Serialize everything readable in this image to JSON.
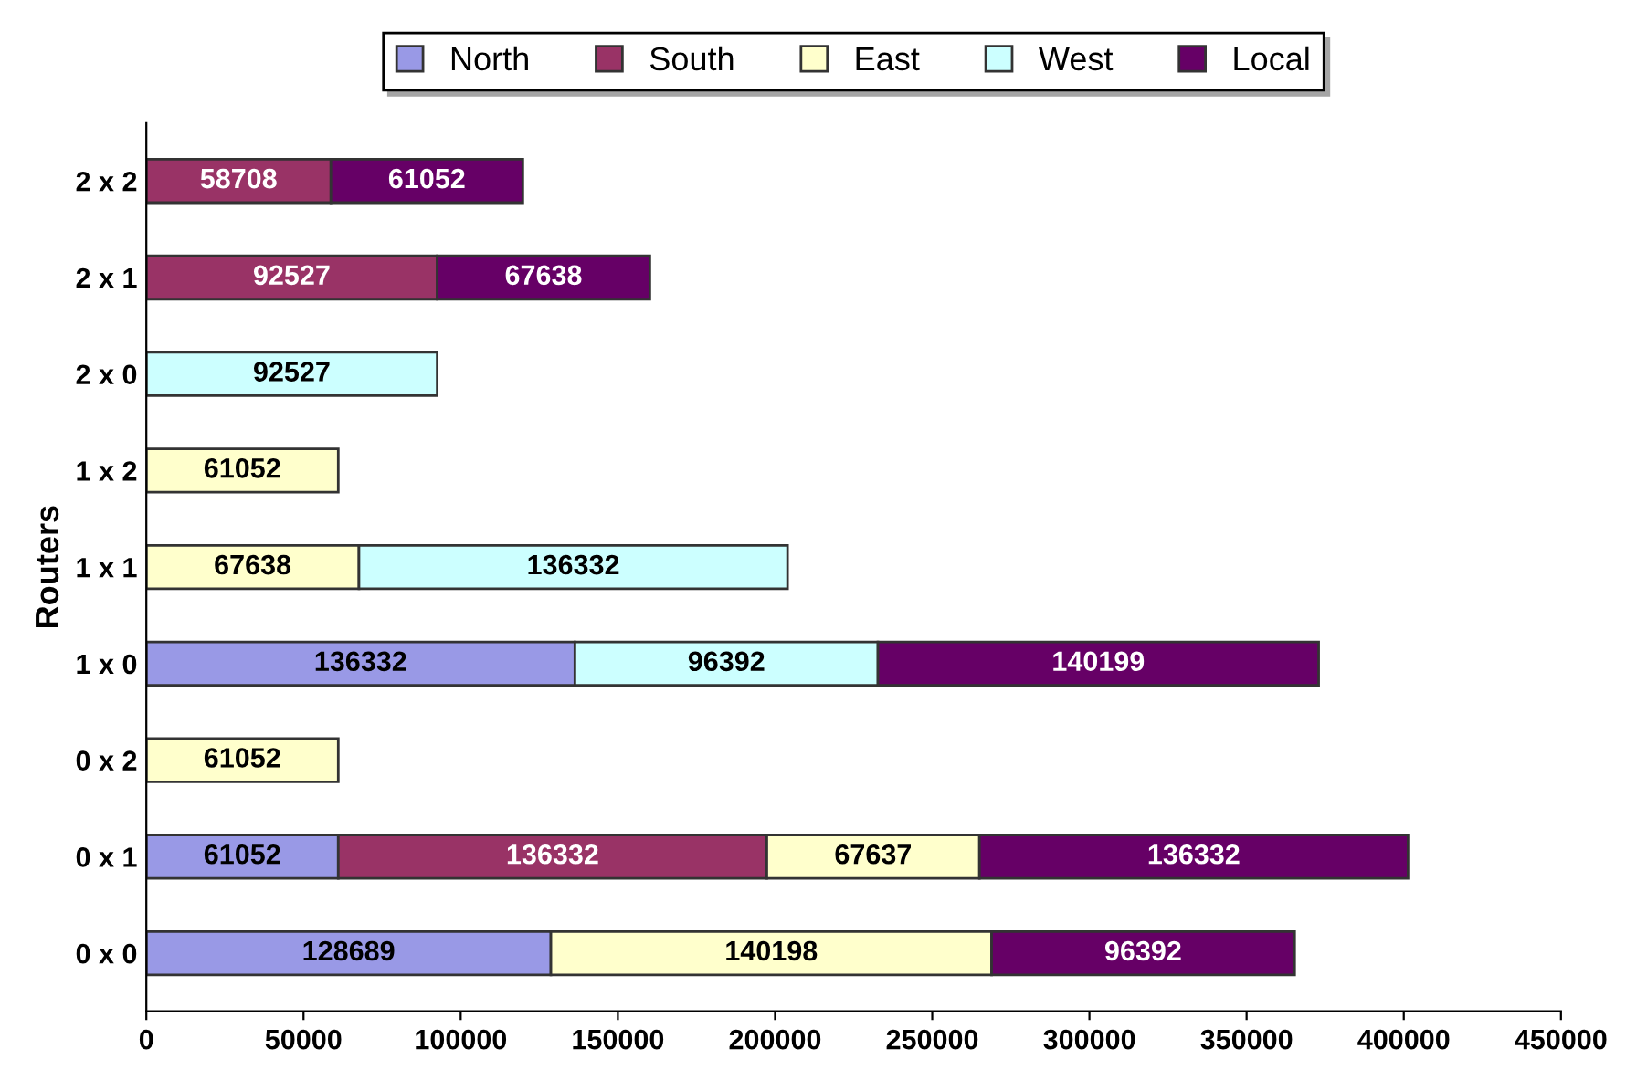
{
  "chart_data": {
    "type": "bar",
    "orientation": "horizontal",
    "stacked": true,
    "ylabel": "Routers",
    "categories": [
      "2 x 2",
      "2 x 1",
      "2 x 0",
      "1 x 2",
      "1 x 1",
      "1 x 0",
      "0 x 2",
      "0 x 1",
      "0 x 0"
    ],
    "series": [
      {
        "name": "North",
        "color": "#9999e6",
        "values": [
          null,
          null,
          null,
          null,
          null,
          136332,
          null,
          61052,
          128689
        ]
      },
      {
        "name": "South",
        "color": "#993366",
        "values": [
          58708,
          92527,
          null,
          null,
          null,
          null,
          null,
          136332,
          null
        ]
      },
      {
        "name": "East",
        "color": "#ffffcc",
        "values": [
          null,
          null,
          null,
          61052,
          67638,
          null,
          61052,
          67637,
          140198
        ]
      },
      {
        "name": "West",
        "color": "#ccffff",
        "values": [
          null,
          null,
          92527,
          null,
          136332,
          96392,
          null,
          null,
          null
        ]
      },
      {
        "name": "Local",
        "color": "#660066",
        "values": [
          61052,
          67638,
          null,
          null,
          null,
          140199,
          null,
          136332,
          96392
        ]
      }
    ],
    "xlim": [
      0,
      450000
    ],
    "xticks": [
      0,
      50000,
      100000,
      150000,
      200000,
      250000,
      300000,
      350000,
      400000,
      450000
    ],
    "data_labels": true,
    "legend": "top",
    "grid": false
  }
}
